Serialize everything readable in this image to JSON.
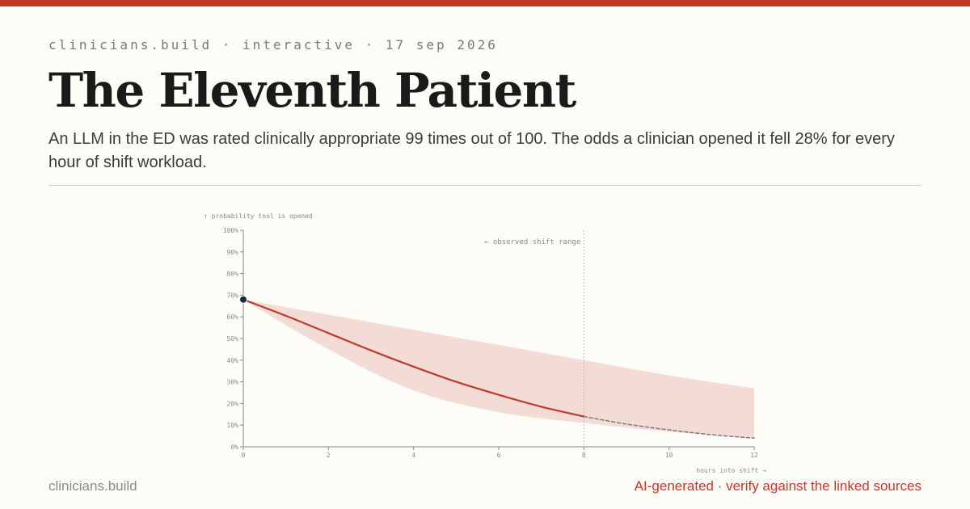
{
  "header": {
    "meta": "clinicians.build · interactive · 17 sep 2026",
    "title": "The Eleventh Patient",
    "subtitle": "An LLM in the ED was rated clinically appropriate 99 times out of 100. The odds a clinician opened it fell 28% for every hour of shift workload."
  },
  "footer": {
    "site": "clinicians.build",
    "disclaimer": "AI-generated · verify against the linked sources"
  },
  "colors": {
    "accent": "#c0392b",
    "band": "#f3dcd6",
    "start_point": "#1b2a4a",
    "background": "#fdfcf6"
  },
  "chart_data": {
    "type": "line",
    "ylabel": "↑ probability tool is opened",
    "xlabel": "hours into shift →",
    "annotation": "← observed shift range",
    "xlim": [
      0,
      12
    ],
    "ylim": [
      0,
      100
    ],
    "x_ticks": [
      0,
      2,
      4,
      6,
      8,
      10,
      12
    ],
    "y_ticks": [
      0,
      10,
      20,
      30,
      40,
      50,
      60,
      70,
      80,
      90,
      100
    ],
    "y_tick_suffix": "%",
    "observed_max_x": 8,
    "grid": false,
    "series": [
      {
        "style": "solid",
        "x": [
          0,
          1,
          2,
          3,
          4,
          5,
          6,
          7,
          8
        ],
        "y": [
          68,
          60.5,
          52.5,
          44.5,
          37,
          30,
          24,
          18.5,
          14
        ]
      },
      {
        "style": "dashed",
        "x": [
          8,
          9,
          10,
          11,
          12
        ],
        "y": [
          14,
          10.5,
          7.8,
          5.6,
          4
        ]
      }
    ],
    "band": {
      "x": [
        0,
        2,
        4,
        6,
        8,
        10,
        12
      ],
      "upper": [
        68,
        61,
        54,
        47,
        40,
        33,
        27
      ],
      "lower": [
        68,
        45,
        26,
        16,
        11,
        7,
        4
      ]
    },
    "start_point": {
      "x": 0,
      "y": 68
    }
  }
}
